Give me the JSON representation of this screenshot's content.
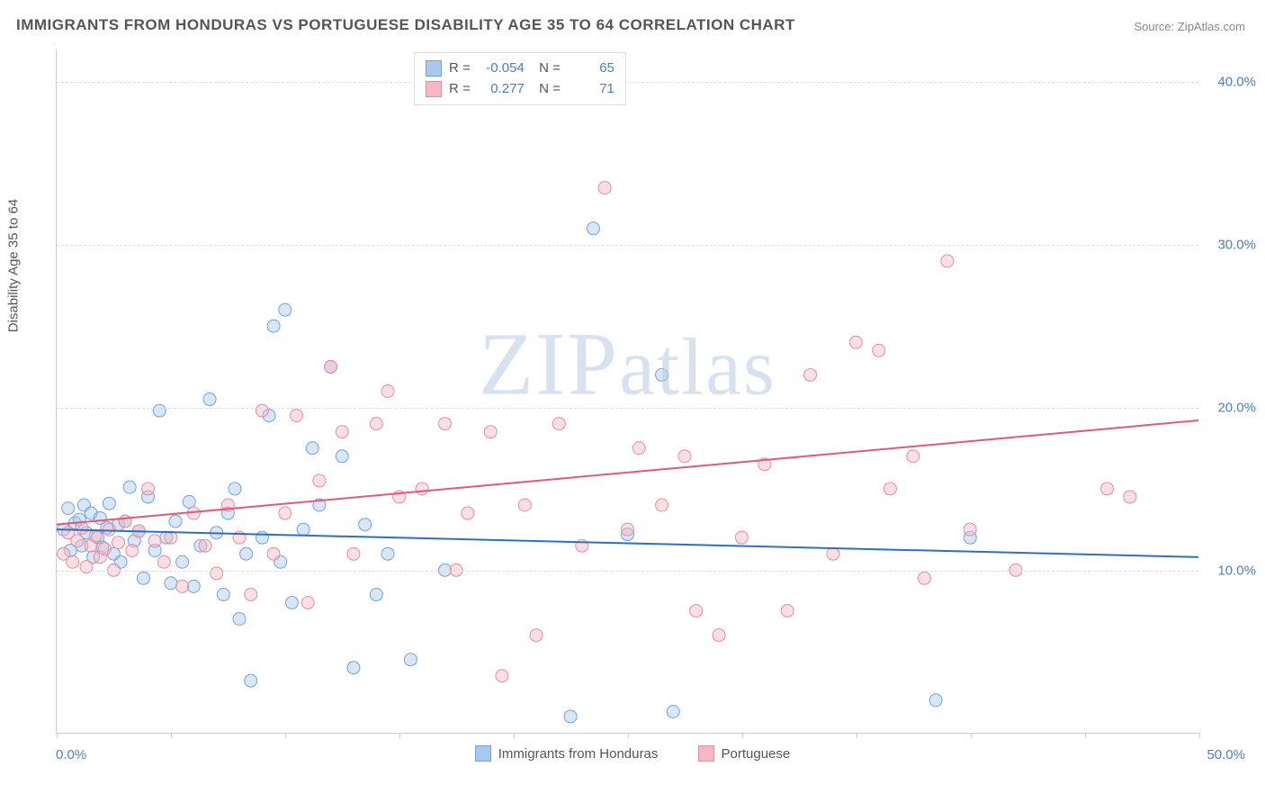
{
  "title": "IMMIGRANTS FROM HONDURAS VS PORTUGUESE DISABILITY AGE 35 TO 64 CORRELATION CHART",
  "source": "Source: ZipAtlas.com",
  "y_axis_title": "Disability Age 35 to 64",
  "watermark": "ZIPatlas",
  "chart": {
    "type": "scatter",
    "xlim": [
      0,
      50
    ],
    "ylim": [
      0,
      42
    ],
    "x_tick_positions": [
      0,
      5,
      10,
      15,
      20,
      25,
      30,
      35,
      40,
      45,
      50
    ],
    "y_gridlines": [
      10,
      20,
      30,
      40
    ],
    "y_tick_labels": [
      "10.0%",
      "20.0%",
      "30.0%",
      "40.0%"
    ],
    "x_label_min": "0.0%",
    "x_label_max": "50.0%",
    "background_color": "#ffffff",
    "grid_color": "#dddddd",
    "axis_color": "#cccccc",
    "label_color": "#4a7ec9",
    "marker_radius": 7,
    "marker_opacity": 0.45,
    "line_width": 2
  },
  "series": [
    {
      "name": "Immigrants from Honduras",
      "color_fill": "#a8c8ec",
      "color_stroke": "#6fa3db",
      "line_color": "#2e6fc4",
      "R": "-0.054",
      "N": "65",
      "trend": {
        "x1": 0,
        "y1": 12.5,
        "x2": 50,
        "y2": 10.8
      },
      "points": [
        [
          0.3,
          12.5
        ],
        [
          0.5,
          13.8
        ],
        [
          0.6,
          11.2
        ],
        [
          0.8,
          12.9
        ],
        [
          1.0,
          13.1
        ],
        [
          1.1,
          11.5
        ],
        [
          1.2,
          14.0
        ],
        [
          1.3,
          12.3
        ],
        [
          1.5,
          13.5
        ],
        [
          1.6,
          10.8
        ],
        [
          1.8,
          12.0
        ],
        [
          1.9,
          13.2
        ],
        [
          2.0,
          11.4
        ],
        [
          2.2,
          12.6
        ],
        [
          2.3,
          14.1
        ],
        [
          2.5,
          11.0
        ],
        [
          2.7,
          12.8
        ],
        [
          2.8,
          10.5
        ],
        [
          3.0,
          13.0
        ],
        [
          3.2,
          15.1
        ],
        [
          3.4,
          11.8
        ],
        [
          3.6,
          12.4
        ],
        [
          3.8,
          9.5
        ],
        [
          4.0,
          14.5
        ],
        [
          4.3,
          11.2
        ],
        [
          4.5,
          19.8
        ],
        [
          4.8,
          12.0
        ],
        [
          5.0,
          9.2
        ],
        [
          5.2,
          13.0
        ],
        [
          5.5,
          10.5
        ],
        [
          5.8,
          14.2
        ],
        [
          6.0,
          9.0
        ],
        [
          6.3,
          11.5
        ],
        [
          6.7,
          20.5
        ],
        [
          7.0,
          12.3
        ],
        [
          7.3,
          8.5
        ],
        [
          7.5,
          13.5
        ],
        [
          7.8,
          15.0
        ],
        [
          8.0,
          7.0
        ],
        [
          8.3,
          11.0
        ],
        [
          8.5,
          3.2
        ],
        [
          9.0,
          12.0
        ],
        [
          9.3,
          19.5
        ],
        [
          9.5,
          25.0
        ],
        [
          9.8,
          10.5
        ],
        [
          10.0,
          26.0
        ],
        [
          10.3,
          8.0
        ],
        [
          10.8,
          12.5
        ],
        [
          11.2,
          17.5
        ],
        [
          11.5,
          14.0
        ],
        [
          12.0,
          22.5
        ],
        [
          12.5,
          17.0
        ],
        [
          13.0,
          4.0
        ],
        [
          13.5,
          12.8
        ],
        [
          14.0,
          8.5
        ],
        [
          14.5,
          11.0
        ],
        [
          15.5,
          4.5
        ],
        [
          17.0,
          10.0
        ],
        [
          22.5,
          1.0
        ],
        [
          23.5,
          31.0
        ],
        [
          25.0,
          12.2
        ],
        [
          26.5,
          22.0
        ],
        [
          27.0,
          1.3
        ],
        [
          38.5,
          2.0
        ],
        [
          40.0,
          12.0
        ]
      ]
    },
    {
      "name": "Portuguese",
      "color_fill": "#f5b8c4",
      "color_stroke": "#e98ba0",
      "line_color": "#e05a7a",
      "R": "0.277",
      "N": "71",
      "trend": {
        "x1": 0,
        "y1": 12.8,
        "x2": 50,
        "y2": 19.2
      },
      "points": [
        [
          0.3,
          11.0
        ],
        [
          0.5,
          12.3
        ],
        [
          0.7,
          10.5
        ],
        [
          0.9,
          11.8
        ],
        [
          1.1,
          12.6
        ],
        [
          1.3,
          10.2
        ],
        [
          1.5,
          11.5
        ],
        [
          1.7,
          12.1
        ],
        [
          1.9,
          10.8
        ],
        [
          2.1,
          11.3
        ],
        [
          2.3,
          12.5
        ],
        [
          2.5,
          10.0
        ],
        [
          2.7,
          11.7
        ],
        [
          3.0,
          13.0
        ],
        [
          3.3,
          11.2
        ],
        [
          3.6,
          12.4
        ],
        [
          4.0,
          15.0
        ],
        [
          4.3,
          11.8
        ],
        [
          4.7,
          10.5
        ],
        [
          5.0,
          12.0
        ],
        [
          5.5,
          9.0
        ],
        [
          6.0,
          13.5
        ],
        [
          6.5,
          11.5
        ],
        [
          7.0,
          9.8
        ],
        [
          7.5,
          14.0
        ],
        [
          8.0,
          12.0
        ],
        [
          8.5,
          8.5
        ],
        [
          9.0,
          19.8
        ],
        [
          9.5,
          11.0
        ],
        [
          10.0,
          13.5
        ],
        [
          10.5,
          19.5
        ],
        [
          11.0,
          8.0
        ],
        [
          11.5,
          15.5
        ],
        [
          12.0,
          22.5
        ],
        [
          12.5,
          18.5
        ],
        [
          13.0,
          11.0
        ],
        [
          14.0,
          19.0
        ],
        [
          14.5,
          21.0
        ],
        [
          15.0,
          14.5
        ],
        [
          16.0,
          15.0
        ],
        [
          17.0,
          19.0
        ],
        [
          17.5,
          10.0
        ],
        [
          18.0,
          13.5
        ],
        [
          19.0,
          18.5
        ],
        [
          19.5,
          3.5
        ],
        [
          20.5,
          14.0
        ],
        [
          21.0,
          6.0
        ],
        [
          22.0,
          19.0
        ],
        [
          23.0,
          11.5
        ],
        [
          24.0,
          33.5
        ],
        [
          25.0,
          12.5
        ],
        [
          25.5,
          17.5
        ],
        [
          26.5,
          14.0
        ],
        [
          27.5,
          17.0
        ],
        [
          28.0,
          7.5
        ],
        [
          29.0,
          6.0
        ],
        [
          30.0,
          12.0
        ],
        [
          31.0,
          16.5
        ],
        [
          32.0,
          7.5
        ],
        [
          33.0,
          22.0
        ],
        [
          34.0,
          11.0
        ],
        [
          35.0,
          24.0
        ],
        [
          36.0,
          23.5
        ],
        [
          36.5,
          15.0
        ],
        [
          37.5,
          17.0
        ],
        [
          38.0,
          9.5
        ],
        [
          39.0,
          29.0
        ],
        [
          40.0,
          12.5
        ],
        [
          42.0,
          10.0
        ],
        [
          46.0,
          15.0
        ],
        [
          47.0,
          14.5
        ]
      ]
    }
  ],
  "legend_bottom": {
    "items": [
      "Immigrants from Honduras",
      "Portuguese"
    ]
  }
}
